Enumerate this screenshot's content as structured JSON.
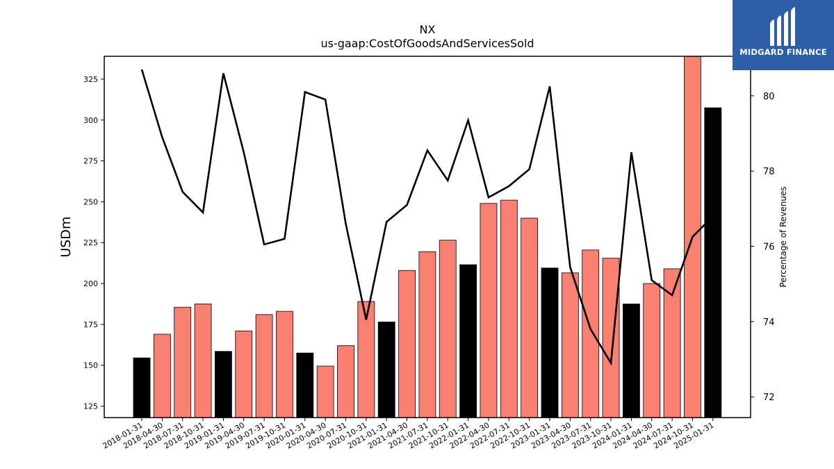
{
  "chart_data": {
    "type": "bar",
    "title": "NX",
    "subtitle": "us-gaap:CostOfGoodsAndServicesSold",
    "ylabel": "USDm",
    "y2label": "Percentage of Revenues",
    "ylim": [
      118,
      339
    ],
    "y2lim": [
      71.45,
      81.05
    ],
    "yticks": [
      125,
      150,
      175,
      200,
      225,
      250,
      275,
      300,
      325
    ],
    "y2ticks": [
      72,
      74,
      76,
      78,
      80
    ],
    "categories": [
      "2018-01-31",
      "2018-04-30",
      "2018-07-31",
      "2018-10-31",
      "2019-01-31",
      "2019-04-30",
      "2019-07-31",
      "2019-10-31",
      "2020-01-31",
      "2020-04-30",
      "2020-07-31",
      "2020-10-31",
      "2021-01-31",
      "2021-04-30",
      "2021-07-31",
      "2021-10-31",
      "2022-01-31",
      "2022-04-30",
      "2022-07-31",
      "2022-10-31",
      "2023-01-31",
      "2023-04-30",
      "2023-07-31",
      "2023-10-31",
      "2024-01-31",
      "2024-04-30",
      "2024-07-31",
      "2024-10-31",
      "2025-01-31"
    ],
    "series": [
      {
        "axis": "left",
        "kind": "bar",
        "values": [
          154.5,
          169,
          185.5,
          187.5,
          158.5,
          171,
          181,
          183,
          157.5,
          149.5,
          162,
          189,
          176.5,
          208,
          219.5,
          226.5,
          211.5,
          249,
          251,
          240,
          209.5,
          206.5,
          220.5,
          215.5,
          187.5,
          200,
          209,
          340,
          307.5
        ],
        "colors": [
          "#000000",
          "#fa8072",
          "#fa8072",
          "#fa8072",
          "#000000",
          "#fa8072",
          "#fa8072",
          "#fa8072",
          "#000000",
          "#fa8072",
          "#fa8072",
          "#fa8072",
          "#000000",
          "#fa8072",
          "#fa8072",
          "#fa8072",
          "#000000",
          "#fa8072",
          "#fa8072",
          "#fa8072",
          "#000000",
          "#fa8072",
          "#fa8072",
          "#fa8072",
          "#000000",
          "#fa8072",
          "#fa8072",
          "#fa8072",
          "#000000"
        ]
      },
      {
        "axis": "right",
        "kind": "line",
        "color": "#000000",
        "values": [
          80.7,
          78.9,
          77.45,
          76.9,
          80.6,
          78.5,
          76.05,
          76.2,
          80.1,
          79.9,
          76.6,
          74.05,
          76.65,
          77.1,
          78.55,
          77.75,
          79.35,
          77.3,
          77.6,
          78.05,
          80.25,
          75.45,
          73.8,
          72.9,
          78.5,
          75.1,
          74.7,
          76.25,
          76.8
        ]
      }
    ]
  },
  "logo": {
    "text": "MIDGARD FINANCE",
    "color": "#2f5ea8"
  }
}
